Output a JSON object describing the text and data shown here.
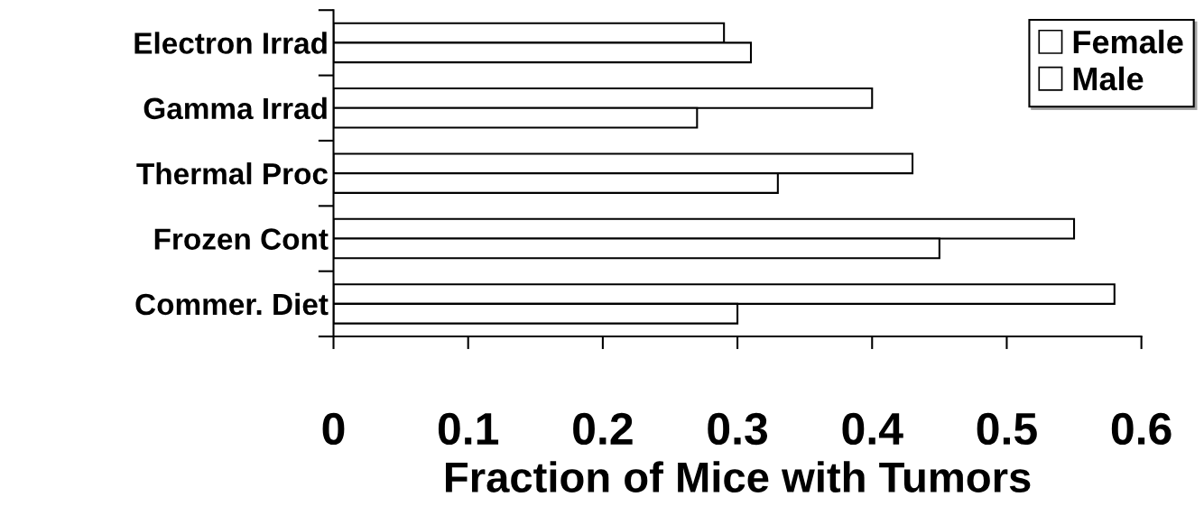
{
  "chart_data": {
    "type": "bar",
    "orientation": "horizontal",
    "categories": [
      "Electron Irrad",
      "Gamma Irrad",
      "Thermal Proc",
      "Frozen Cont",
      "Commer. Diet"
    ],
    "series": [
      {
        "name": "Female",
        "color": "#ffffff",
        "values": [
          0.29,
          0.4,
          0.43,
          0.55,
          0.58
        ]
      },
      {
        "name": "Male",
        "color": "#ffffff",
        "values": [
          0.31,
          0.27,
          0.33,
          0.45,
          0.3
        ]
      }
    ],
    "xlabel": "Fraction of Mice with Tumors",
    "xlim": [
      0,
      0.6
    ],
    "xticks": [
      0,
      0.1,
      0.2,
      0.3,
      0.4,
      0.5,
      0.6
    ],
    "grid": false,
    "legend": "top right"
  }
}
